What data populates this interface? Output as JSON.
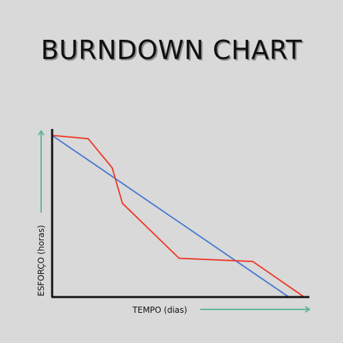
{
  "chart_data": {
    "type": "line",
    "title": "BURNDOWN CHART",
    "xlabel": "TEMPO (dias)",
    "ylabel": "ESFORÇO (horas)",
    "x": [
      0,
      1,
      2,
      3,
      4,
      5,
      6,
      7,
      8,
      9,
      10,
      11,
      12,
      13,
      14
    ],
    "series": [
      {
        "name": "",
        "color": "#4a7bd1",
        "points": [
          [
            0,
            100
          ],
          [
            13.8,
            0
          ]
        ]
      },
      {
        "name": "",
        "color": "#ef3b2c",
        "points": [
          [
            0,
            100
          ],
          [
            2.1,
            98
          ],
          [
            3.5,
            80
          ],
          [
            4.1,
            58
          ],
          [
            7.4,
            24
          ],
          [
            11.7,
            22
          ],
          [
            14.7,
            0
          ]
        ]
      }
    ],
    "xlim": [
      0,
      15
    ],
    "ylim": [
      0,
      104
    ],
    "grid": false,
    "legend": "none",
    "axis_arrow_color": "#5db59a",
    "axis_color": "#111111"
  }
}
